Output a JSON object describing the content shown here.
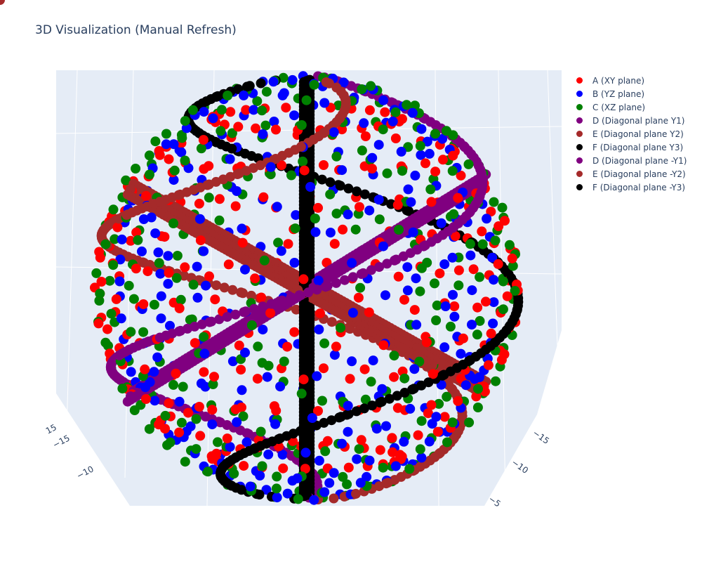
{
  "page": {
    "title": "3D Visualization (Manual Refresh)"
  },
  "chart_data": {
    "type": "scatter3d",
    "title": "3D Visualization (Manual Refresh)",
    "sphere_radius": 15,
    "points_per_circle": 80,
    "series": [
      {
        "name": "A (XY plane)",
        "color": "#ff0000",
        "plane": "XY",
        "angle_deg": 0
      },
      {
        "name": "B (YZ plane)",
        "color": "#0000ff",
        "plane": "YZ",
        "angle_deg": 0
      },
      {
        "name": "C (XZ plane)",
        "color": "#008000",
        "plane": "XZ",
        "angle_deg": 0
      },
      {
        "name": "D (Diagonal plane Y1)",
        "color": "#800080",
        "plane": "diag",
        "angle_deg": 30
      },
      {
        "name": "E (Diagonal plane Y2)",
        "color": "#a52a2a",
        "plane": "diag",
        "angle_deg": -30
      },
      {
        "name": "F (Diagonal plane Y3)",
        "color": "#000000",
        "plane": "diag",
        "angle_deg": 90
      },
      {
        "name": "D (Diagonal plane -Y1)",
        "color": "#800080",
        "plane": "diag",
        "angle_deg": 210
      },
      {
        "name": "E (Diagonal plane -Y2)",
        "color": "#a52a2a",
        "plane": "diag",
        "angle_deg": 150
      },
      {
        "name": "F (Diagonal plane -Y3)",
        "color": "#000000",
        "plane": "diag",
        "angle_deg": 270
      }
    ],
    "left_axis_ticks": [
      "15",
      "−15",
      "−10"
    ],
    "right_axis_ticks": [
      "−15",
      "−10",
      "−5"
    ],
    "legend_position": "top-right"
  }
}
